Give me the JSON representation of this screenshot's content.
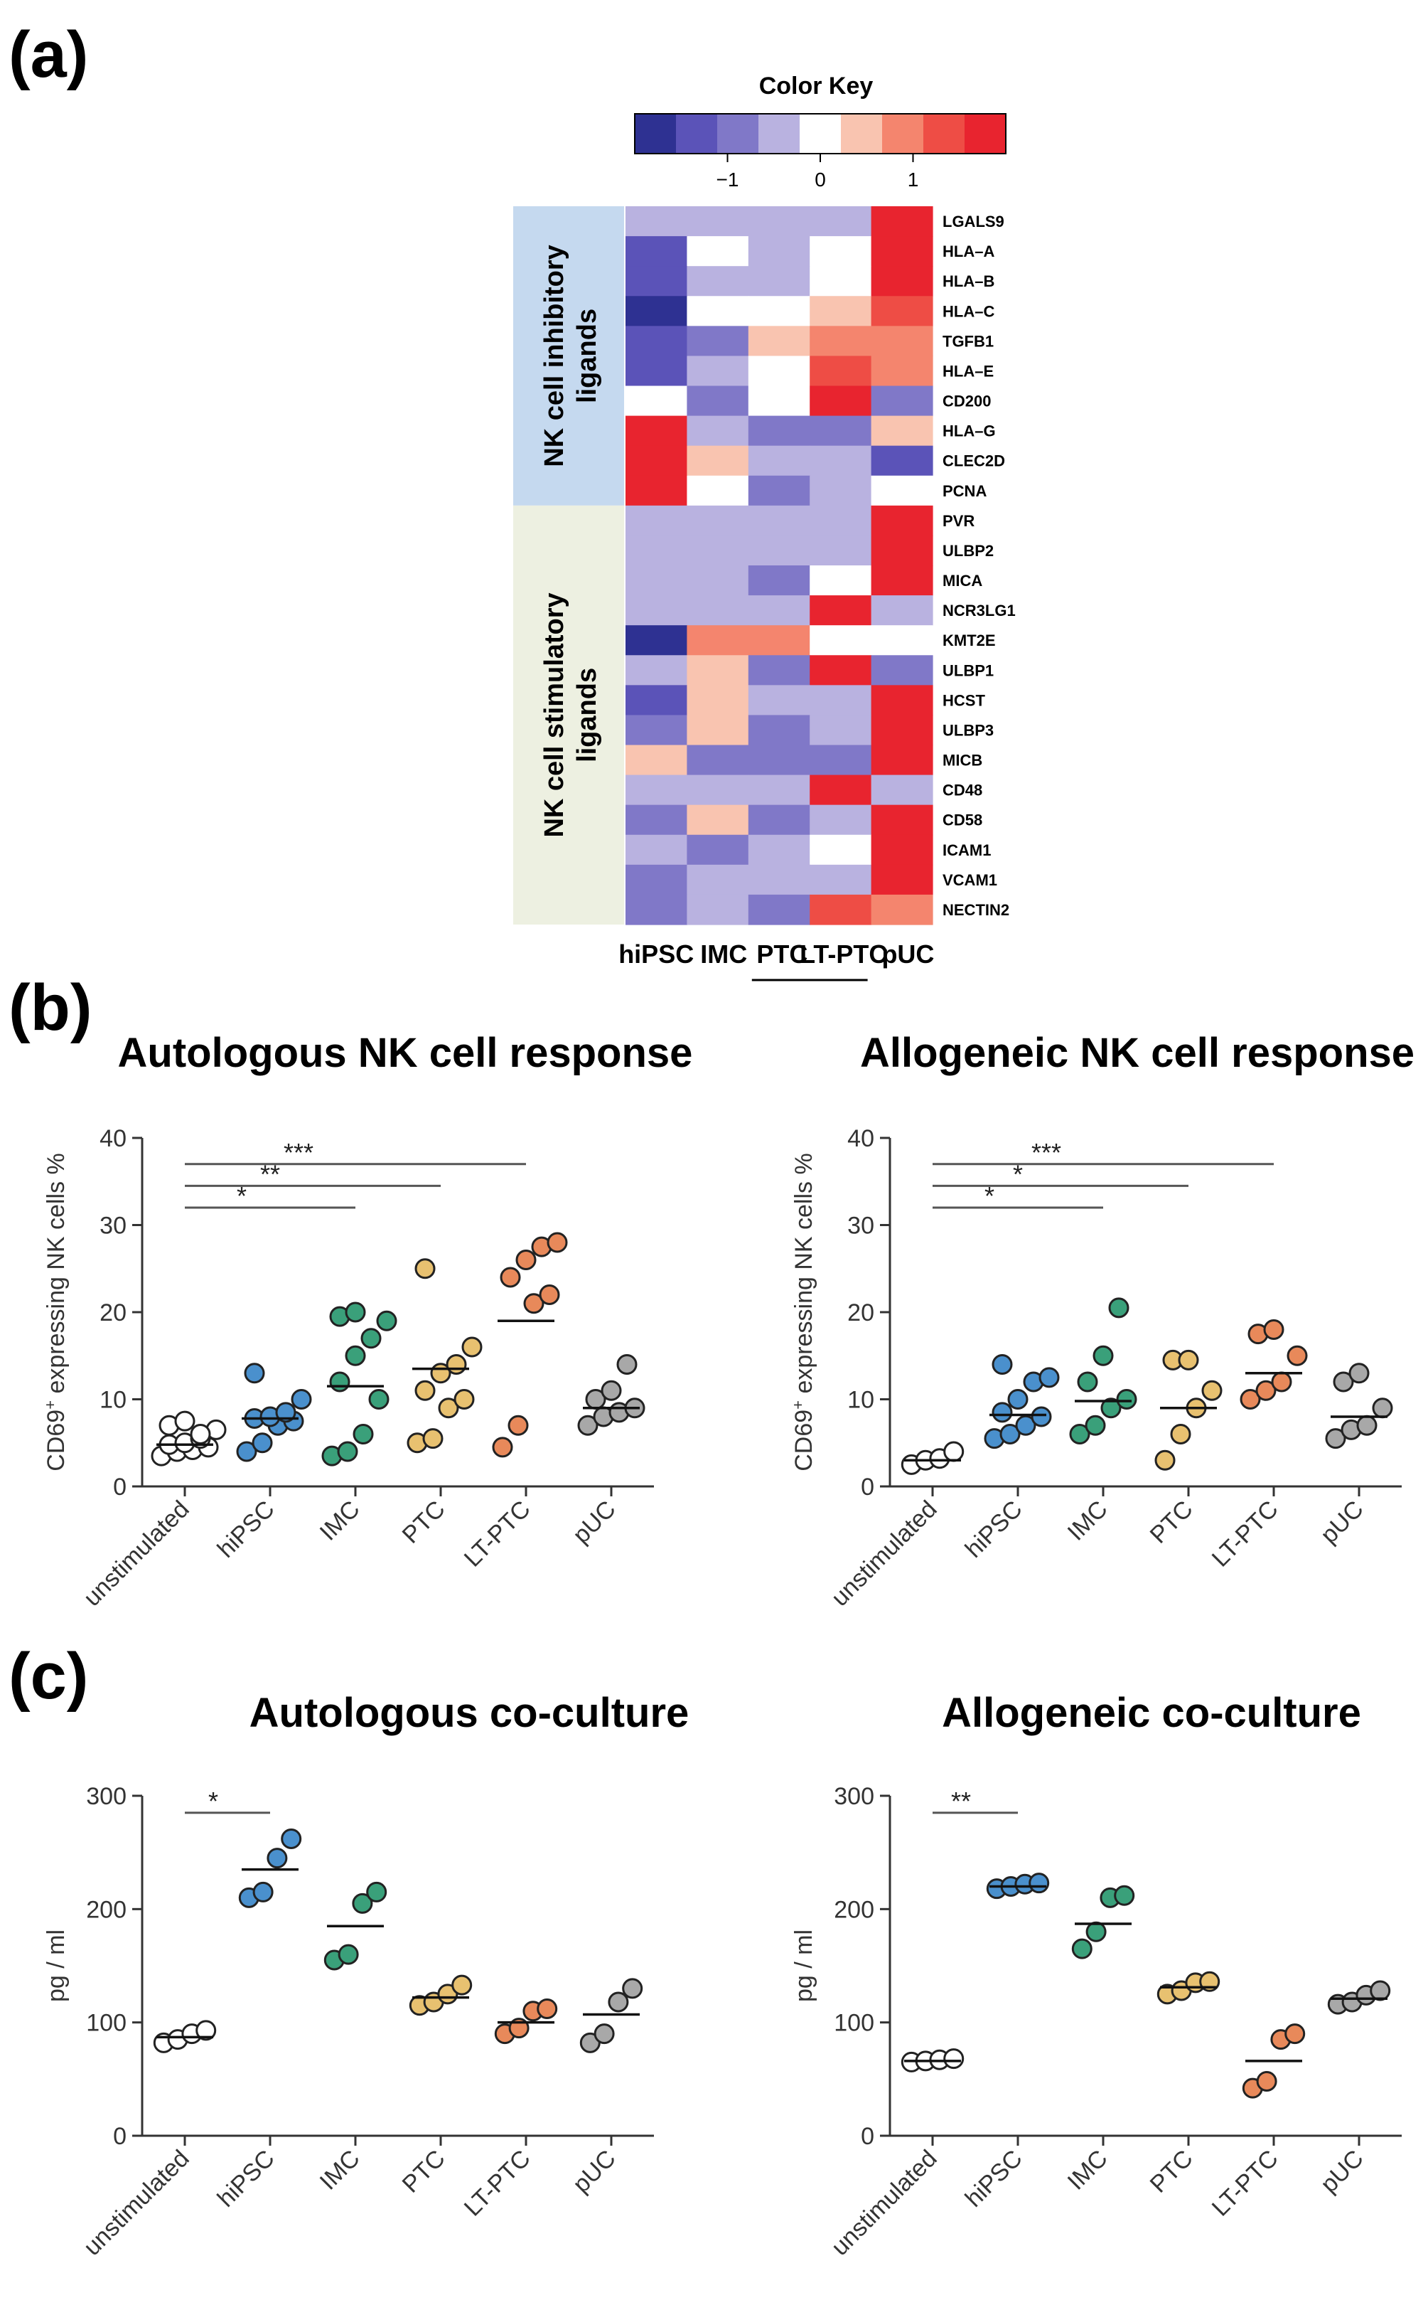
{
  "panels": {
    "a": "(a)",
    "b": "(b)",
    "c": "(c)"
  },
  "heatmap": {
    "key_title": "Color Key",
    "key_ticks": [
      "−1",
      "0",
      "1"
    ],
    "key_colors": [
      "#2e3192",
      "#5b53b8",
      "#8078c8",
      "#b9b2e0",
      "#ffffff",
      "#f9c4b0",
      "#f4856e",
      "#ee4d45",
      "#e8242f"
    ],
    "groups": [
      "NK cell inhibitory ligands",
      "NK cell stimulatory ligands"
    ],
    "group_colors": [
      "#c5d9ef",
      "#edf0e1"
    ],
    "columns": [
      "hiPSC",
      "IMC",
      "PTC",
      "LT-PTC",
      "pUC"
    ],
    "genes": [
      "LGALS9",
      "HLA–A",
      "HLA–B",
      "HLA–C",
      "TGFB1",
      "HLA–E",
      "CD200",
      "HLA–G",
      "CLEC2D",
      "PCNA",
      "PVR",
      "ULBP2",
      "MICA",
      "NCR3LG1",
      "KMT2E",
      "ULBP1",
      "HCST",
      "ULBP3",
      "MICB",
      "CD48",
      "CD58",
      "ICAM1",
      "VCAM1",
      "NECTIN2"
    ],
    "values": [
      [
        -0.3,
        -0.3,
        -0.3,
        -0.3,
        1.8
      ],
      [
        -1.2,
        0,
        -0.3,
        0,
        1.8
      ],
      [
        -1.2,
        -0.3,
        -0.3,
        0,
        1.8
      ],
      [
        -1.8,
        0,
        0,
        0.4,
        1.5
      ],
      [
        -1.2,
        -0.8,
        0.4,
        1.0,
        1.0
      ],
      [
        -1.2,
        -0.3,
        0,
        1.5,
        1.0
      ],
      [
        0,
        -0.8,
        0,
        1.8,
        -0.8
      ],
      [
        1.8,
        -0.3,
        -0.8,
        -0.8,
        0.4
      ],
      [
        1.8,
        0.4,
        -0.3,
        -0.3,
        -1.2
      ],
      [
        1.8,
        0,
        -0.8,
        -0.3,
        0
      ],
      [
        -0.3,
        -0.3,
        -0.3,
        -0.3,
        1.8
      ],
      [
        -0.3,
        -0.3,
        -0.3,
        -0.3,
        1.8
      ],
      [
        -0.3,
        -0.3,
        -0.8,
        0,
        1.8
      ],
      [
        -0.3,
        -0.3,
        -0.3,
        1.8,
        -0.3
      ],
      [
        -1.8,
        1.0,
        1.0,
        0,
        0
      ],
      [
        -0.3,
        0.4,
        -0.8,
        1.8,
        -0.8
      ],
      [
        -1.2,
        0.4,
        -0.3,
        -0.3,
        1.8
      ],
      [
        -0.8,
        0.4,
        -0.8,
        -0.3,
        1.8
      ],
      [
        0.4,
        -0.8,
        -0.8,
        -0.8,
        1.8
      ],
      [
        -0.3,
        -0.3,
        -0.3,
        1.8,
        -0.3
      ],
      [
        -0.8,
        0.4,
        -0.8,
        -0.3,
        1.8
      ],
      [
        -0.3,
        -0.8,
        -0.3,
        0,
        1.8
      ],
      [
        -0.8,
        -0.3,
        -0.3,
        -0.3,
        1.8
      ],
      [
        -0.8,
        -0.3,
        -0.8,
        1.5,
        1.0
      ]
    ]
  },
  "chart_data": [
    {
      "type": "scatter",
      "title": "Autologous NK cell response",
      "ylabel_main": "CD69",
      "ylabel_sup": "+",
      "ylabel_rest": " expressing NK cells %",
      "categories": [
        "unstimulated",
        "hiPSC",
        "IMC",
        "PTC",
        "LT-PTC",
        "pUC"
      ],
      "ylim": [
        0,
        40
      ],
      "yticks": [
        0,
        10,
        20,
        30,
        40
      ],
      "colors": [
        "#ffffff",
        "#4a90cd",
        "#3aa07a",
        "#e8c170",
        "#e8895a",
        "#a8a8a8"
      ],
      "points": [
        [
          3.5,
          4.0,
          4.2,
          4.5,
          4.8,
          5.0,
          5.5,
          6.5,
          7.0,
          7.5,
          6.0
        ],
        [
          4.0,
          5.0,
          7.0,
          7.5,
          7.8,
          8.0,
          8.5,
          10.0,
          13.0
        ],
        [
          3.5,
          4.0,
          6.0,
          10.0,
          12.0,
          15.0,
          17.0,
          19.0,
          19.5,
          20.0
        ],
        [
          5.0,
          5.5,
          9.0,
          10.0,
          11.0,
          13.0,
          14.0,
          16.0,
          25.0
        ],
        [
          4.5,
          7.0,
          21.0,
          22.0,
          24.0,
          26.0,
          27.5,
          28.0
        ],
        [
          7.0,
          8.0,
          8.5,
          9.0,
          10.0,
          11.0,
          14.0
        ]
      ],
      "medians": [
        4.8,
        7.8,
        11.5,
        13.5,
        19.0,
        9.0
      ],
      "significance": [
        {
          "from": 0,
          "to": 2,
          "label": "*",
          "y": 32
        },
        {
          "from": 0,
          "to": 3,
          "label": "**",
          "y": 34.5
        },
        {
          "from": 0,
          "to": 4,
          "label": "***",
          "y": 37
        }
      ]
    },
    {
      "type": "scatter",
      "title": "Allogeneic NK cell response",
      "ylabel_main": "CD69",
      "ylabel_sup": "+",
      "ylabel_rest": " expressing NK cells %",
      "categories": [
        "unstimulated",
        "hiPSC",
        "IMC",
        "PTC",
        "LT-PTC",
        "pUC"
      ],
      "ylim": [
        0,
        40
      ],
      "yticks": [
        0,
        10,
        20,
        30,
        40
      ],
      "colors": [
        "#ffffff",
        "#4a90cd",
        "#3aa07a",
        "#e8c170",
        "#e8895a",
        "#a8a8a8"
      ],
      "points": [
        [
          2.5,
          3.0,
          3.2,
          4.0
        ],
        [
          5.5,
          6.0,
          7.0,
          8.0,
          8.5,
          10.0,
          12.0,
          12.5,
          14.0
        ],
        [
          6.0,
          7.0,
          9.0,
          10.0,
          12.0,
          15.0,
          20.5
        ],
        [
          3.0,
          6.0,
          9.0,
          11.0,
          14.5,
          14.5
        ],
        [
          10.0,
          11.0,
          12.0,
          15.0,
          17.5,
          18.0
        ],
        [
          5.5,
          6.5,
          7.0,
          9.0,
          12.0,
          13.0
        ]
      ],
      "medians": [
        3.0,
        8.2,
        9.8,
        9.0,
        13.0,
        8.0
      ],
      "significance": [
        {
          "from": 0,
          "to": 2,
          "label": "*",
          "y": 32
        },
        {
          "from": 0,
          "to": 3,
          "label": "*",
          "y": 34.5
        },
        {
          "from": 0,
          "to": 4,
          "label": "***",
          "y": 37
        }
      ]
    },
    {
      "type": "scatter",
      "title": "Autologous co-culture",
      "ylabel_main": "pg / ml",
      "ylabel_sup": "",
      "ylabel_rest": "",
      "categories": [
        "unstimulated",
        "hiPSC",
        "IMC",
        "PTC",
        "LT-PTC",
        "pUC"
      ],
      "ylim": [
        0,
        300
      ],
      "yticks": [
        0,
        100,
        200,
        300
      ],
      "colors": [
        "#ffffff",
        "#4a90cd",
        "#3aa07a",
        "#e8c170",
        "#e8895a",
        "#a8a8a8"
      ],
      "points": [
        [
          82,
          85,
          90,
          93
        ],
        [
          210,
          215,
          245,
          262
        ],
        [
          155,
          160,
          205,
          215
        ],
        [
          115,
          118,
          125,
          133
        ],
        [
          90,
          95,
          110,
          112
        ],
        [
          82,
          90,
          118,
          130
        ]
      ],
      "medians": [
        87,
        235,
        185,
        122,
        100,
        107
      ],
      "significance": [
        {
          "from": 0,
          "to": 1,
          "label": "*",
          "y": 285
        }
      ]
    },
    {
      "type": "scatter",
      "title": "Allogeneic co-culture",
      "ylabel_main": "pg / ml",
      "ylabel_sup": "",
      "ylabel_rest": "",
      "categories": [
        "unstimulated",
        "hiPSC",
        "IMC",
        "PTC",
        "LT-PTC",
        "pUC"
      ],
      "ylim": [
        0,
        300
      ],
      "yticks": [
        0,
        100,
        200,
        300
      ],
      "colors": [
        "#ffffff",
        "#4a90cd",
        "#3aa07a",
        "#e8c170",
        "#e8895a",
        "#a8a8a8"
      ],
      "points": [
        [
          65,
          66,
          67,
          68
        ],
        [
          218,
          220,
          222,
          223
        ],
        [
          165,
          180,
          210,
          212
        ],
        [
          125,
          128,
          135,
          136
        ],
        [
          42,
          48,
          85,
          90
        ],
        [
          116,
          118,
          124,
          128
        ]
      ],
      "medians": [
        66,
        220,
        187,
        131,
        66,
        121
      ],
      "significance": [
        {
          "from": 0,
          "to": 1,
          "label": "**",
          "y": 285
        }
      ]
    }
  ]
}
